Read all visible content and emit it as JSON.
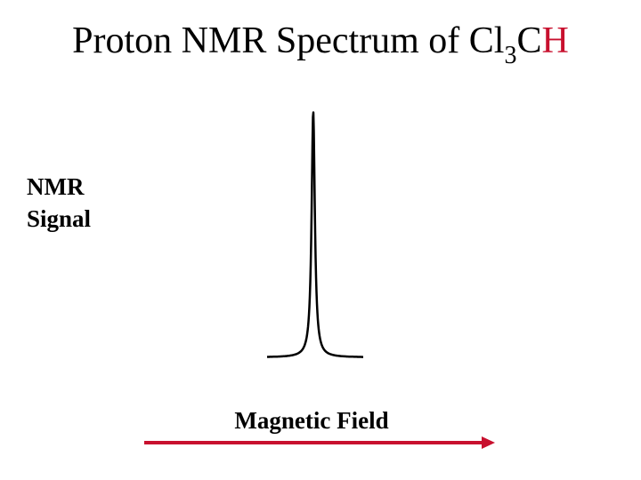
{
  "title": {
    "prefix": "Proton NMR Spectrum of Cl",
    "subscript": "3",
    "carbon": "C",
    "highlight": "H",
    "highlight_color": "#c8102e"
  },
  "chart_data": {
    "type": "line",
    "title": "Proton NMR Spectrum of Cl3CH",
    "ylabel_lines": [
      "NMR",
      "Signal"
    ],
    "xlabel": "Magnetic Field",
    "x_direction": "increasing to the right",
    "series": [
      {
        "peaks": [
          {
            "relative_position": 0.48,
            "relative_height": 1.0
          }
        ]
      }
    ],
    "axis_arrow_color": "#c8102e",
    "trace_color": "#000000"
  }
}
